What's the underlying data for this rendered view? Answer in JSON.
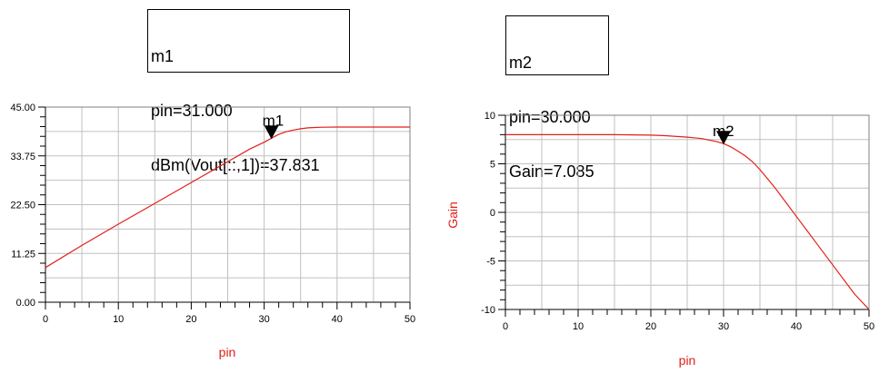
{
  "markers": [
    {
      "id": "m1",
      "lines": [
        "m1",
        "pin=31.000",
        "dBm(Vout[::,1])=37.831"
      ]
    },
    {
      "id": "m2",
      "lines": [
        "m2",
        "pin=30.000",
        "Gain=7.085"
      ]
    }
  ],
  "colors": {
    "trace": "#e0201a",
    "axis_label": "#e0201a",
    "grid": "#c0c0c0",
    "frame": "#808080"
  },
  "chart_data": [
    {
      "type": "line",
      "title": "",
      "xlabel": "pin",
      "ylabel": "",
      "xlim": [
        0,
        50
      ],
      "ylim": [
        0,
        45
      ],
      "x_ticks": [
        0,
        10,
        20,
        30,
        40,
        50
      ],
      "x_tick_labels": [
        "0",
        "10",
        "20",
        "30",
        "40",
        "50"
      ],
      "y_ticks": [
        0,
        11.25,
        22.5,
        33.75,
        45
      ],
      "y_tick_labels": [
        "0.00",
        "11.25",
        "22.50",
        "33.75",
        "45.00"
      ],
      "grid": true,
      "series": [
        {
          "x": [
            0,
            5,
            10,
            15,
            20,
            25,
            28,
            30,
            31,
            32,
            33,
            34,
            35,
            36,
            37,
            38,
            40,
            45,
            50
          ],
          "values": [
            8.0,
            13.1,
            18.0,
            22.8,
            27.6,
            32.4,
            35.3,
            36.9,
            37.831,
            38.7,
            39.3,
            39.7,
            40.0,
            40.2,
            40.3,
            40.35,
            40.4,
            40.4,
            40.4
          ]
        }
      ],
      "marker": {
        "label": "m1",
        "x": 31,
        "y": 37.831
      }
    },
    {
      "type": "line",
      "title": "",
      "xlabel": "pin",
      "ylabel": "Gain",
      "xlim": [
        0,
        50
      ],
      "ylim": [
        -10,
        10
      ],
      "x_ticks": [
        0,
        10,
        20,
        30,
        40,
        50
      ],
      "x_tick_labels": [
        "0",
        "10",
        "20",
        "30",
        "40",
        "50"
      ],
      "y_ticks": [
        -10,
        -5,
        0,
        5,
        10
      ],
      "y_tick_labels": [
        "-10",
        "-5",
        "0",
        "5",
        "10"
      ],
      "grid": true,
      "series": [
        {
          "name": "Gain",
          "x": [
            0,
            5,
            10,
            15,
            20,
            22,
            25,
            27,
            28,
            29,
            30,
            31,
            32,
            33,
            34,
            35,
            36,
            37,
            38,
            40,
            42,
            45,
            48,
            50
          ],
          "values": [
            8.0,
            8.0,
            8.0,
            8.0,
            7.95,
            7.9,
            7.75,
            7.6,
            7.45,
            7.3,
            7.085,
            6.75,
            6.3,
            5.8,
            5.2,
            4.4,
            3.5,
            2.6,
            1.6,
            -0.4,
            -2.4,
            -5.4,
            -8.4,
            -10.0
          ]
        }
      ],
      "marker": {
        "label": "m2",
        "x": 30,
        "y": 7.085
      }
    }
  ]
}
